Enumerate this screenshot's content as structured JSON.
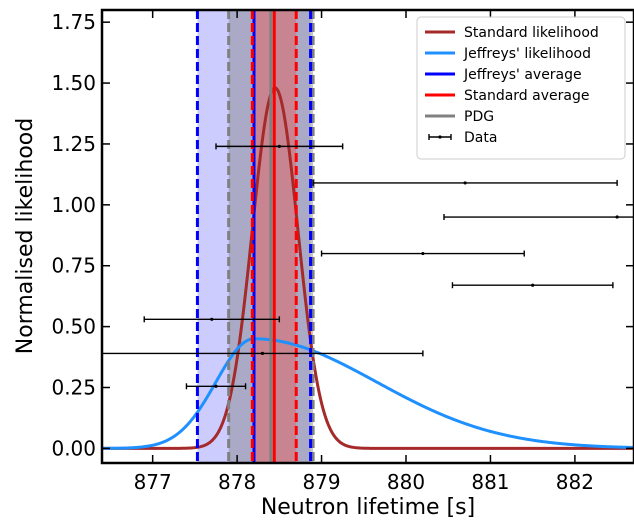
{
  "chart_data": {
    "type": "line",
    "xlabel": "Neutron lifetime [s]",
    "ylabel": "Normalised likelihood",
    "xlim": [
      876.4,
      882.7
    ],
    "ylim": [
      -0.06,
      1.8
    ],
    "xticks": [
      "877",
      "878",
      "879",
      "880",
      "881",
      "882"
    ],
    "xtick_values": [
      877,
      878,
      879,
      880,
      881,
      882
    ],
    "yticks": [
      "0.00",
      "0.25",
      "0.50",
      "0.75",
      "1.00",
      "1.25",
      "1.50",
      "1.75"
    ],
    "ytick_values": [
      0.0,
      0.25,
      0.5,
      0.75,
      1.0,
      1.25,
      1.5,
      1.75
    ],
    "grid": false,
    "legend_position": "top-right",
    "series": [
      {
        "name": "Standard likelihood",
        "kind": "gaussian",
        "mu": 878.45,
        "sigma": 0.27,
        "peak": 1.48,
        "color": "#a52a2a"
      },
      {
        "name": "Jeffreys' likelihood",
        "kind": "skewed",
        "mode": 878.2,
        "sigma_left": 0.45,
        "sigma_right": 1.45,
        "peak": 0.45,
        "color": "#1e90ff"
      }
    ],
    "averages": [
      {
        "name": "Jeffreys' average",
        "center": 878.2,
        "lower": 877.53,
        "upper": 878.87,
        "color": "#0000ff",
        "band_color": "#9999ff"
      },
      {
        "name": "Standard average",
        "center": 878.44,
        "lower": 878.18,
        "upper": 878.7,
        "color": "#ff0000",
        "band_color": "#e06666"
      },
      {
        "name": "PDG",
        "center": 878.4,
        "lower": 877.9,
        "upper": 878.9,
        "color": "#808080",
        "band_color": "#808080"
      }
    ],
    "data_points": {
      "name": "Data",
      "color": "#000000",
      "points": [
        {
          "x": 878.5,
          "y": 1.24,
          "xerr": 0.75
        },
        {
          "x": 880.7,
          "y": 1.09,
          "xerr": 1.8
        },
        {
          "x": 882.5,
          "y": 0.95,
          "xerr": 2.05
        },
        {
          "x": 880.2,
          "y": 0.8,
          "xerr": 1.2
        },
        {
          "x": 881.5,
          "y": 0.67,
          "xerr": 0.95
        },
        {
          "x": 877.7,
          "y": 0.53,
          "xerr": 0.8
        },
        {
          "x": 878.3,
          "y": 0.39,
          "xerr": 1.9
        },
        {
          "x": 877.75,
          "y": 0.255,
          "xerr": 0.35
        }
      ]
    }
  }
}
